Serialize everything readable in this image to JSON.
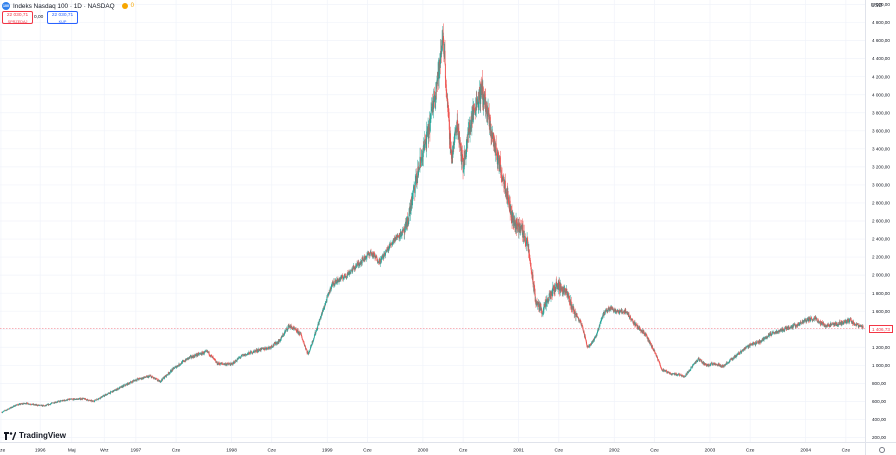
{
  "header": {
    "symbol_logo_text": "100",
    "title": "Indeks Nasdaq 100 · 1D · NASDAQ",
    "live_count": "0"
  },
  "quote": {
    "sell_price": "22 030,71",
    "sell_label": "SPRZEDAJ",
    "spread": "0,00",
    "buy_price": "22 030,71",
    "buy_label": "KUP"
  },
  "currency": "USD",
  "branding": "TradingView",
  "colors": {
    "up": "#26a69a",
    "down": "#ef5350",
    "grid": "#f0f3fa",
    "axis_text": "#131722",
    "price_tag": "#f23645"
  },
  "chart_data": {
    "type": "candlestick",
    "title": "Indeks Nasdaq 100 · 1D · NASDAQ",
    "xlabel": "",
    "ylabel": "",
    "ylim": [
      150,
      5050
    ],
    "x_range": [
      1995.58,
      2004.62
    ],
    "grid": true,
    "last_price_label": "1 406,73",
    "last_price": 1406.73,
    "y_ticks": [
      200,
      400,
      600,
      800,
      1000,
      1200,
      1400,
      1600,
      1800,
      2000,
      2200,
      2400,
      2600,
      2800,
      3000,
      3200,
      3400,
      3600,
      3800,
      4000,
      4200,
      4400,
      4600,
      4800,
      5000
    ],
    "y_tick_labels": [
      "200,00",
      "400,00",
      "600,00",
      "800,00",
      "1 000,00",
      "1 200,00",
      "1 400,00",
      "1 600,00",
      "1 800,00",
      "2 000,00",
      "2 200,00",
      "2 400,00",
      "2 600,00",
      "2 800,00",
      "3 000,00",
      "3 200,00",
      "3 400,00",
      "3 600,00",
      "3 800,00",
      "4 000,00",
      "4 200,00",
      "4 400,00",
      "4 600,00",
      "4 800,00",
      "5 000,00"
    ],
    "x_ticks": [
      {
        "label": "Cze",
        "t": 1995.59
      },
      {
        "label": "1996",
        "t": 1996.0
      },
      {
        "label": "Maj",
        "t": 1996.33
      },
      {
        "label": "Wrz",
        "t": 1996.67
      },
      {
        "label": "1997",
        "t": 1997.0
      },
      {
        "label": "Cze",
        "t": 1997.42
      },
      {
        "label": "1998",
        "t": 1998.0
      },
      {
        "label": "Cze",
        "t": 1998.42
      },
      {
        "label": "1999",
        "t": 1999.0
      },
      {
        "label": "Cze",
        "t": 1999.42
      },
      {
        "label": "2000",
        "t": 2000.0
      },
      {
        "label": "Cze",
        "t": 2000.42
      },
      {
        "label": "2001",
        "t": 2001.0
      },
      {
        "label": "Cze",
        "t": 2001.42
      },
      {
        "label": "2002",
        "t": 2002.0
      },
      {
        "label": "Cze",
        "t": 2002.42
      },
      {
        "label": "2003",
        "t": 2003.0
      },
      {
        "label": "Cze",
        "t": 2003.42
      },
      {
        "label": "2004",
        "t": 2004.0
      },
      {
        "label": "Cze",
        "t": 2004.42
      }
    ],
    "price_path": [
      [
        1995.6,
        480
      ],
      [
        1995.75,
        560
      ],
      [
        1995.85,
        580
      ],
      [
        1995.95,
        560
      ],
      [
        1996.05,
        550
      ],
      [
        1996.15,
        590
      ],
      [
        1996.3,
        620
      ],
      [
        1996.45,
        630
      ],
      [
        1996.55,
        600
      ],
      [
        1996.7,
        680
      ],
      [
        1996.85,
        760
      ],
      [
        1997.0,
        840
      ],
      [
        1997.15,
        880
      ],
      [
        1997.25,
        820
      ],
      [
        1997.4,
        970
      ],
      [
        1997.55,
        1080
      ],
      [
        1997.65,
        1120
      ],
      [
        1997.75,
        1150
      ],
      [
        1997.85,
        1020
      ],
      [
        1998.0,
        1010
      ],
      [
        1998.1,
        1100
      ],
      [
        1998.25,
        1160
      ],
      [
        1998.4,
        1200
      ],
      [
        1998.5,
        1270
      ],
      [
        1998.6,
        1440
      ],
      [
        1998.72,
        1350
      ],
      [
        1998.8,
        1120
      ],
      [
        1998.92,
        1500
      ],
      [
        1999.05,
        1900
      ],
      [
        1999.2,
        2000
      ],
      [
        1999.3,
        2100
      ],
      [
        1999.45,
        2250
      ],
      [
        1999.55,
        2150
      ],
      [
        1999.7,
        2400
      ],
      [
        1999.82,
        2500
      ],
      [
        1999.9,
        2900
      ],
      [
        1999.96,
        3200
      ],
      [
        2000.06,
        3600
      ],
      [
        2000.12,
        4000
      ],
      [
        2000.18,
        4350
      ],
      [
        2000.21,
        4700
      ],
      [
        2000.26,
        3800
      ],
      [
        2000.3,
        3300
      ],
      [
        2000.36,
        3700
      ],
      [
        2000.42,
        3200
      ],
      [
        2000.48,
        3600
      ],
      [
        2000.55,
        3900
      ],
      [
        2000.62,
        4050
      ],
      [
        2000.7,
        3650
      ],
      [
        2000.78,
        3300
      ],
      [
        2000.86,
        3000
      ],
      [
        2000.94,
        2600
      ],
      [
        2001.04,
        2500
      ],
      [
        2001.1,
        2300
      ],
      [
        2001.18,
        1700
      ],
      [
        2001.25,
        1600
      ],
      [
        2001.32,
        1750
      ],
      [
        2001.4,
        1900
      ],
      [
        2001.5,
        1800
      ],
      [
        2001.58,
        1600
      ],
      [
        2001.66,
        1450
      ],
      [
        2001.72,
        1200
      ],
      [
        2001.8,
        1300
      ],
      [
        2001.88,
        1560
      ],
      [
        2001.96,
        1640
      ],
      [
        2002.04,
        1590
      ],
      [
        2002.12,
        1600
      ],
      [
        2002.22,
        1450
      ],
      [
        2002.32,
        1350
      ],
      [
        2002.42,
        1150
      ],
      [
        2002.5,
        950
      ],
      [
        2002.58,
        910
      ],
      [
        2002.66,
        900
      ],
      [
        2002.74,
        880
      ],
      [
        2002.8,
        970
      ],
      [
        2002.88,
        1070
      ],
      [
        2002.96,
        1000
      ],
      [
        2003.05,
        1020
      ],
      [
        2003.14,
        990
      ],
      [
        2003.22,
        1060
      ],
      [
        2003.32,
        1150
      ],
      [
        2003.42,
        1230
      ],
      [
        2003.52,
        1260
      ],
      [
        2003.62,
        1340
      ],
      [
        2003.72,
        1380
      ],
      [
        2003.82,
        1420
      ],
      [
        2003.92,
        1450
      ],
      [
        2004.0,
        1500
      ],
      [
        2004.1,
        1520
      ],
      [
        2004.2,
        1440
      ],
      [
        2004.3,
        1450
      ],
      [
        2004.38,
        1470
      ],
      [
        2004.46,
        1500
      ],
      [
        2004.54,
        1440
      ],
      [
        2004.6,
        1420
      ]
    ]
  }
}
